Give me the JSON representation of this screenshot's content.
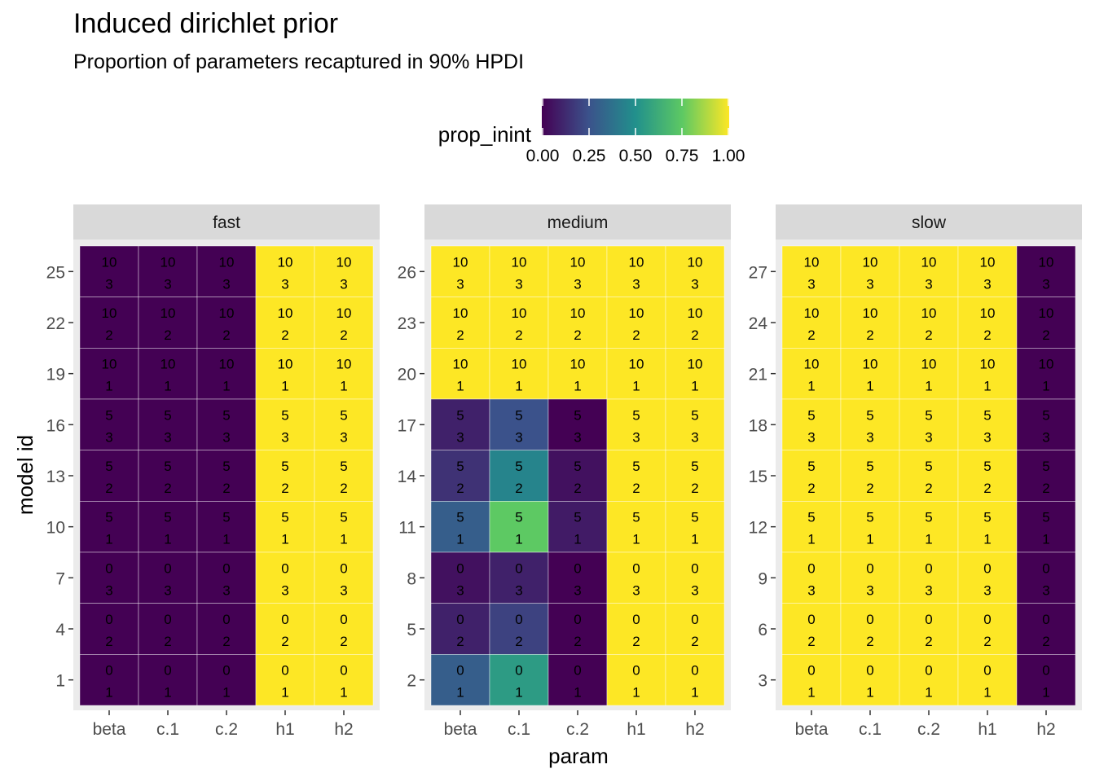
{
  "chart_data": {
    "type": "heatmap",
    "title": "Induced dirichlet prior",
    "subtitle": "Proportion of parameters recaptured in 90% HPDI",
    "xlabel": "param",
    "ylabel": "model id",
    "x_categories": [
      "beta",
      "c.1",
      "c.2",
      "h1",
      "h2"
    ],
    "legend": {
      "title": "prop_inint",
      "position": "top",
      "ticks": [
        "0.00",
        "0.25",
        "0.50",
        "0.75",
        "1.00"
      ],
      "range": [
        0,
        1
      ],
      "palette": [
        "#440154",
        "#3b528b",
        "#21908c",
        "#5dc963",
        "#fde725"
      ]
    },
    "cell_text_rows": [
      {
        "top": "10",
        "bottom": "3"
      },
      {
        "top": "10",
        "bottom": "2"
      },
      {
        "top": "10",
        "bottom": "1"
      },
      {
        "top": "5",
        "bottom": "3"
      },
      {
        "top": "5",
        "bottom": "2"
      },
      {
        "top": "5",
        "bottom": "1"
      },
      {
        "top": "0",
        "bottom": "3"
      },
      {
        "top": "0",
        "bottom": "2"
      },
      {
        "top": "0",
        "bottom": "1"
      }
    ],
    "panels": [
      {
        "name": "fast",
        "y_ticks": [
          "25",
          "22",
          "19",
          "16",
          "13",
          "10",
          "7",
          "4",
          "1"
        ],
        "values": [
          [
            0,
            0,
            0,
            1,
            1
          ],
          [
            0,
            0,
            0,
            1,
            1
          ],
          [
            0,
            0,
            0,
            1,
            1
          ],
          [
            0,
            0,
            0,
            1,
            1
          ],
          [
            0,
            0,
            0,
            1,
            1
          ],
          [
            0,
            0,
            0,
            1,
            1
          ],
          [
            0,
            0,
            0,
            1,
            1
          ],
          [
            0,
            0,
            0,
            1,
            1
          ],
          [
            0,
            0,
            0,
            1,
            1
          ]
        ]
      },
      {
        "name": "medium",
        "y_ticks": [
          "26",
          "23",
          "20",
          "17",
          "14",
          "11",
          "8",
          "5",
          "2"
        ],
        "values": [
          [
            1,
            1,
            1,
            1,
            1
          ],
          [
            1,
            1,
            1,
            1,
            1
          ],
          [
            1,
            1,
            1,
            1,
            1
          ],
          [
            0.1,
            0.25,
            0,
            1,
            1
          ],
          [
            0.15,
            0.45,
            0.05,
            1,
            1
          ],
          [
            0.3,
            0.75,
            0.08,
            1,
            1
          ],
          [
            0.05,
            0.1,
            0,
            1,
            1
          ],
          [
            0.1,
            0.2,
            0,
            1,
            1
          ],
          [
            0.3,
            0.55,
            0,
            1,
            1
          ]
        ]
      },
      {
        "name": "slow",
        "y_ticks": [
          "27",
          "24",
          "21",
          "18",
          "15",
          "12",
          "9",
          "6",
          "3"
        ],
        "values": [
          [
            1,
            1,
            1,
            1,
            0
          ],
          [
            1,
            1,
            1,
            1,
            0
          ],
          [
            1,
            1,
            1,
            1,
            0
          ],
          [
            1,
            1,
            1,
            1,
            0
          ],
          [
            1,
            1,
            1,
            1,
            0
          ],
          [
            1,
            1,
            1,
            1,
            0
          ],
          [
            1,
            1,
            1,
            1,
            0
          ],
          [
            1,
            1,
            1,
            1,
            0
          ],
          [
            1,
            1,
            1,
            1,
            0
          ]
        ]
      }
    ]
  }
}
